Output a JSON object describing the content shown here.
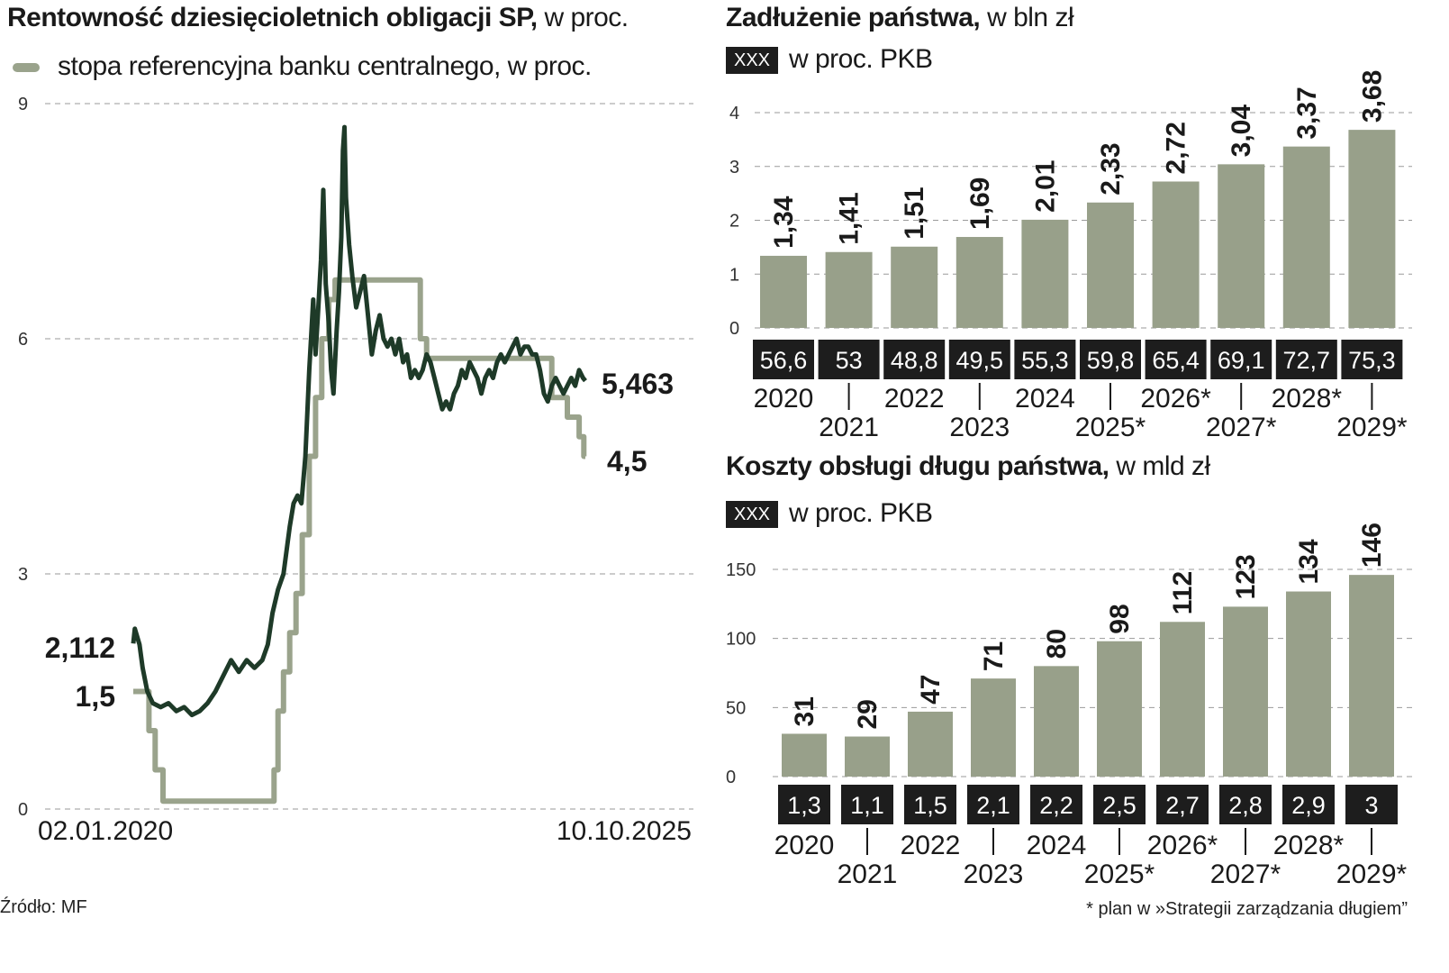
{
  "colors": {
    "yield_line": "#1e3a28",
    "ref_rate_line": "#9aa38c",
    "bar_fill": "#98a08a",
    "box_fill": "#1d1d1d",
    "grid": "#9a9a9a"
  },
  "left": {
    "title_bold": "Rentowność dziesięcioletnich obligacji SP,",
    "title_light": " w proc.",
    "legend_label": "stopa referencyjna banku centralnego, w proc.",
    "start_date": "02.01.2020",
    "end_date": "10.10.2025",
    "label_yield_start": "2,112",
    "label_ref_start": "1,5",
    "label_yield_end": "5,463",
    "label_ref_end": "4,5"
  },
  "right_top": {
    "title_bold": "Zadłużenie państwa,",
    "title_light": " w bln zł",
    "box_label": "XXX",
    "box_caption": "w proc. PKB"
  },
  "right_bottom": {
    "title_bold": "Koszty obsługi długu państwa,",
    "title_light": " w mld zł",
    "box_label": "XXX",
    "box_caption": "w proc. PKB"
  },
  "source": "Źródło: MF",
  "footnote": "* plan w »Strategii zarządzania długiem”",
  "chart_data": [
    {
      "type": "line",
      "yticks": [
        "0",
        "3",
        "6",
        "9"
      ],
      "ylim": [
        0,
        9
      ],
      "x_range": [
        "2020-01-02",
        "2025-10-10"
      ],
      "series": [
        {
          "values_by_year_fraction": [
            [
              2020.0,
              2.112
            ],
            [
              2020.02,
              2.3
            ],
            [
              2020.05,
              2.2
            ],
            [
              2020.08,
              2.1
            ],
            [
              2020.12,
              1.8
            ],
            [
              2020.18,
              1.5
            ],
            [
              2020.25,
              1.35
            ],
            [
              2020.35,
              1.3
            ],
            [
              2020.45,
              1.35
            ],
            [
              2020.55,
              1.25
            ],
            [
              2020.65,
              1.3
            ],
            [
              2020.75,
              1.2
            ],
            [
              2020.85,
              1.25
            ],
            [
              2020.95,
              1.35
            ],
            [
              2021.05,
              1.5
            ],
            [
              2021.15,
              1.7
            ],
            [
              2021.25,
              1.9
            ],
            [
              2021.35,
              1.75
            ],
            [
              2021.45,
              1.9
            ],
            [
              2021.55,
              1.8
            ],
            [
              2021.65,
              1.9
            ],
            [
              2021.72,
              2.1
            ],
            [
              2021.78,
              2.5
            ],
            [
              2021.85,
              2.8
            ],
            [
              2021.92,
              3.0
            ],
            [
              2022.0,
              3.6
            ],
            [
              2022.05,
              3.9
            ],
            [
              2022.1,
              4.0
            ],
            [
              2022.15,
              3.9
            ],
            [
              2022.2,
              4.5
            ],
            [
              2022.25,
              5.6
            ],
            [
              2022.3,
              6.5
            ],
            [
              2022.33,
              5.8
            ],
            [
              2022.36,
              6.3
            ],
            [
              2022.4,
              7.0
            ],
            [
              2022.43,
              7.9
            ],
            [
              2022.46,
              6.7
            ],
            [
              2022.5,
              6.2
            ],
            [
              2022.53,
              5.6
            ],
            [
              2022.56,
              5.3
            ],
            [
              2022.6,
              6.1
            ],
            [
              2022.63,
              6.6
            ],
            [
              2022.66,
              7.3
            ],
            [
              2022.68,
              8.4
            ],
            [
              2022.7,
              8.7
            ],
            [
              2022.72,
              7.8
            ],
            [
              2022.76,
              7.2
            ],
            [
              2022.8,
              6.8
            ],
            [
              2022.85,
              6.4
            ],
            [
              2022.9,
              6.6
            ],
            [
              2022.95,
              6.8
            ],
            [
              2023.0,
              6.3
            ],
            [
              2023.05,
              5.8
            ],
            [
              2023.1,
              6.1
            ],
            [
              2023.15,
              6.3
            ],
            [
              2023.2,
              6.0
            ],
            [
              2023.25,
              5.9
            ],
            [
              2023.3,
              6.0
            ],
            [
              2023.35,
              5.8
            ],
            [
              2023.4,
              6.0
            ],
            [
              2023.45,
              5.7
            ],
            [
              2023.5,
              5.8
            ],
            [
              2023.55,
              5.5
            ],
            [
              2023.6,
              5.6
            ],
            [
              2023.65,
              5.5
            ],
            [
              2023.7,
              5.6
            ],
            [
              2023.75,
              5.8
            ],
            [
              2023.8,
              5.7
            ],
            [
              2023.85,
              5.5
            ],
            [
              2023.9,
              5.3
            ],
            [
              2023.95,
              5.1
            ],
            [
              2024.0,
              5.2
            ],
            [
              2024.05,
              5.1
            ],
            [
              2024.1,
              5.3
            ],
            [
              2024.15,
              5.4
            ],
            [
              2024.2,
              5.6
            ],
            [
              2024.25,
              5.5
            ],
            [
              2024.3,
              5.7
            ],
            [
              2024.35,
              5.6
            ],
            [
              2024.4,
              5.5
            ],
            [
              2024.45,
              5.3
            ],
            [
              2024.5,
              5.5
            ],
            [
              2024.55,
              5.6
            ],
            [
              2024.6,
              5.5
            ],
            [
              2024.65,
              5.7
            ],
            [
              2024.7,
              5.8
            ],
            [
              2024.75,
              5.7
            ],
            [
              2024.8,
              5.8
            ],
            [
              2024.85,
              5.9
            ],
            [
              2024.9,
              6.0
            ],
            [
              2024.95,
              5.8
            ],
            [
              2025.0,
              5.9
            ],
            [
              2025.05,
              5.9
            ],
            [
              2025.1,
              5.8
            ],
            [
              2025.15,
              5.8
            ],
            [
              2025.2,
              5.6
            ],
            [
              2025.25,
              5.3
            ],
            [
              2025.3,
              5.2
            ],
            [
              2025.35,
              5.4
            ],
            [
              2025.4,
              5.5
            ],
            [
              2025.45,
              5.4
            ],
            [
              2025.5,
              5.3
            ],
            [
              2025.55,
              5.4
            ],
            [
              2025.6,
              5.5
            ],
            [
              2025.65,
              5.4
            ],
            [
              2025.7,
              5.6
            ],
            [
              2025.75,
              5.5
            ],
            [
              2025.78,
              5.463
            ]
          ]
        },
        {
          "name": "stopa referencyjna banku centralnego, w proc.",
          "values_by_year_fraction": [
            [
              2020.0,
              1.5
            ],
            [
              2020.2,
              1.5
            ],
            [
              2020.2,
              1.0
            ],
            [
              2020.28,
              1.0
            ],
            [
              2020.28,
              0.5
            ],
            [
              2020.38,
              0.5
            ],
            [
              2020.38,
              0.1
            ],
            [
              2021.8,
              0.1
            ],
            [
              2021.8,
              0.5
            ],
            [
              2021.85,
              0.5
            ],
            [
              2021.85,
              1.25
            ],
            [
              2021.92,
              1.25
            ],
            [
              2021.92,
              1.75
            ],
            [
              2022.0,
              1.75
            ],
            [
              2022.0,
              2.25
            ],
            [
              2022.08,
              2.25
            ],
            [
              2022.08,
              2.75
            ],
            [
              2022.16,
              2.75
            ],
            [
              2022.16,
              3.5
            ],
            [
              2022.25,
              3.5
            ],
            [
              2022.25,
              4.5
            ],
            [
              2022.33,
              4.5
            ],
            [
              2022.33,
              5.25
            ],
            [
              2022.41,
              5.25
            ],
            [
              2022.41,
              6.0
            ],
            [
              2022.5,
              6.0
            ],
            [
              2022.5,
              6.5
            ],
            [
              2022.58,
              6.5
            ],
            [
              2022.58,
              6.75
            ],
            [
              2023.67,
              6.75
            ],
            [
              2023.67,
              6.0
            ],
            [
              2023.75,
              6.0
            ],
            [
              2023.75,
              5.75
            ],
            [
              2025.35,
              5.75
            ],
            [
              2025.35,
              5.25
            ],
            [
              2025.55,
              5.25
            ],
            [
              2025.55,
              5.0
            ],
            [
              2025.7,
              5.0
            ],
            [
              2025.7,
              4.75
            ],
            [
              2025.76,
              4.75
            ],
            [
              2025.76,
              4.5
            ],
            [
              2025.78,
              4.5
            ]
          ]
        }
      ]
    },
    {
      "type": "bar",
      "title": "Zadłużenie państwa, w bln zł",
      "ylim": [
        0,
        4
      ],
      "yticks": [
        "0",
        "1",
        "2",
        "3",
        "4"
      ],
      "categories": [
        "2020",
        "2021",
        "2022",
        "2023",
        "2024",
        "2025*",
        "2026*",
        "2027*",
        "2028*",
        "2029*"
      ],
      "values": [
        1.34,
        1.41,
        1.51,
        1.69,
        2.01,
        2.33,
        2.72,
        3.04,
        3.37,
        3.68
      ],
      "value_labels": [
        "1,34",
        "1,41",
        "1,51",
        "1,69",
        "2,01",
        "2,33",
        "2,72",
        "3,04",
        "3,37",
        "3,68"
      ],
      "pkb_labels": [
        "56,6",
        "53",
        "48,8",
        "49,5",
        "55,3",
        "59,8",
        "65,4",
        "69,1",
        "72,7",
        "75,3"
      ]
    },
    {
      "type": "bar",
      "title": "Koszty obsługi długu państwa, w mld zł",
      "ylim": [
        0,
        150
      ],
      "yticks": [
        "0",
        "50",
        "100",
        "150"
      ],
      "categories": [
        "2020",
        "2021",
        "2022",
        "2023",
        "2024",
        "2025*",
        "2026*",
        "2027*",
        "2028*",
        "2029*"
      ],
      "values": [
        31,
        29,
        47,
        71,
        80,
        98,
        112,
        123,
        134,
        146
      ],
      "value_labels": [
        "31",
        "29",
        "47",
        "71",
        "80",
        "98",
        "112",
        "123",
        "134",
        "146"
      ],
      "pkb_labels": [
        "1,3",
        "1,1",
        "1,5",
        "2,1",
        "2,2",
        "2,5",
        "2,7",
        "2,8",
        "2,9",
        "3"
      ]
    }
  ]
}
